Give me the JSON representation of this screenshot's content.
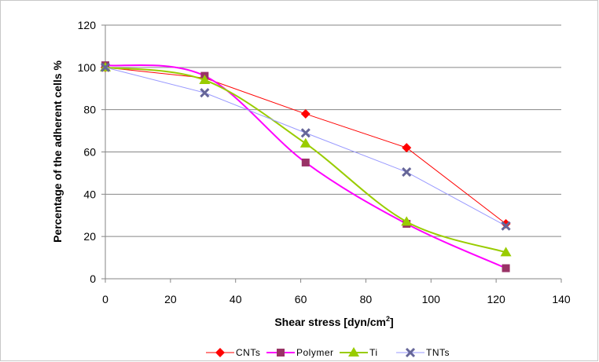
{
  "chart_data": {
    "type": "line",
    "title": "",
    "xlabel": "Shear stress  [dyn/cm",
    "xlabel_sup": "2",
    "xlabel_end": "]",
    "ylabel": "Percentage of the adherent cells %",
    "xlim": [
      0,
      140
    ],
    "ylim": [
      0,
      120
    ],
    "xticks": [
      0,
      20,
      40,
      60,
      80,
      100,
      120,
      140
    ],
    "yticks": [
      0,
      20,
      40,
      60,
      80,
      100,
      120
    ],
    "grid": "horizontal",
    "legend_position": "bottom",
    "x": [
      0,
      30.5,
      61.5,
      92.5,
      123
    ],
    "series": [
      {
        "name": "CNTs",
        "values": [
          100,
          95,
          78,
          62,
          26
        ],
        "color": "#ff0000",
        "marker": "diamond",
        "smooth": false
      },
      {
        "name": "Polymer",
        "values": [
          101,
          96,
          55,
          26,
          5
        ],
        "color": "#ff00ff",
        "marker_color": "#993366",
        "marker": "square",
        "smooth": true
      },
      {
        "name": "Ti",
        "values": [
          100,
          94,
          64,
          27,
          12.5
        ],
        "color": "#99cc00",
        "marker": "triangle",
        "smooth": true
      },
      {
        "name": "TNTs",
        "values": [
          100,
          88,
          69,
          50.5,
          25
        ],
        "color": "#9999ff",
        "marker_color": "#666699",
        "marker": "x-star",
        "smooth": false
      }
    ]
  }
}
